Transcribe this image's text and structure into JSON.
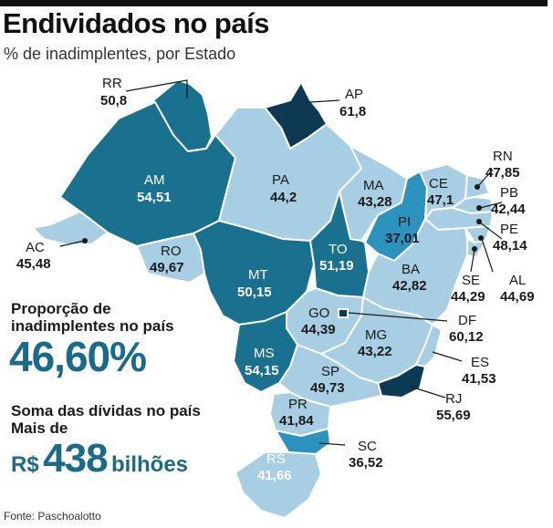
{
  "title": "Endividados no país",
  "subtitle": "% de inadimplentes, por Estado",
  "colors": {
    "darkest": "#0d3a52",
    "dark": "#19708f",
    "medium": "#2c93bf",
    "light": "#a7cee3",
    "accent": "#1a6a8a"
  },
  "states": [
    {
      "code": "RR",
      "value": "50,8"
    },
    {
      "code": "AP",
      "value": "61,8"
    },
    {
      "code": "AM",
      "value": "54,51"
    },
    {
      "code": "PA",
      "value": "44,2"
    },
    {
      "code": "MA",
      "value": "43,28"
    },
    {
      "code": "CE",
      "value": "47,1"
    },
    {
      "code": "RN",
      "value": "47,85"
    },
    {
      "code": "PB",
      "value": "42,44"
    },
    {
      "code": "PE",
      "value": "48,14"
    },
    {
      "code": "PI",
      "value": "37,01"
    },
    {
      "code": "AC",
      "value": "45,48"
    },
    {
      "code": "RO",
      "value": "49,67"
    },
    {
      "code": "TO",
      "value": "51,19"
    },
    {
      "code": "MT",
      "value": "50,15"
    },
    {
      "code": "BA",
      "value": "42,82"
    },
    {
      "code": "SE",
      "value": "44,29"
    },
    {
      "code": "AL",
      "value": "44,69"
    },
    {
      "code": "GO",
      "value": "44,39"
    },
    {
      "code": "DF",
      "value": "60,12"
    },
    {
      "code": "MG",
      "value": "43,22"
    },
    {
      "code": "MS",
      "value": "54,15"
    },
    {
      "code": "SP",
      "value": "49,73"
    },
    {
      "code": "ES",
      "value": "41,53"
    },
    {
      "code": "RJ",
      "value": "55,69"
    },
    {
      "code": "PR",
      "value": "41,84"
    },
    {
      "code": "SC",
      "value": "36,52"
    },
    {
      "code": "RS",
      "value": "41,66"
    }
  ],
  "proportion": {
    "label_line1": "Proporção de",
    "label_line2": "inadimplentes no país",
    "value": "46,60%"
  },
  "debt": {
    "label_line1": "Soma das dívidas no país",
    "label_line2": "Mais de",
    "currency": "R$",
    "amount": "438",
    "unit": "bilhões"
  },
  "source": "Fonte: Paschoalotto"
}
